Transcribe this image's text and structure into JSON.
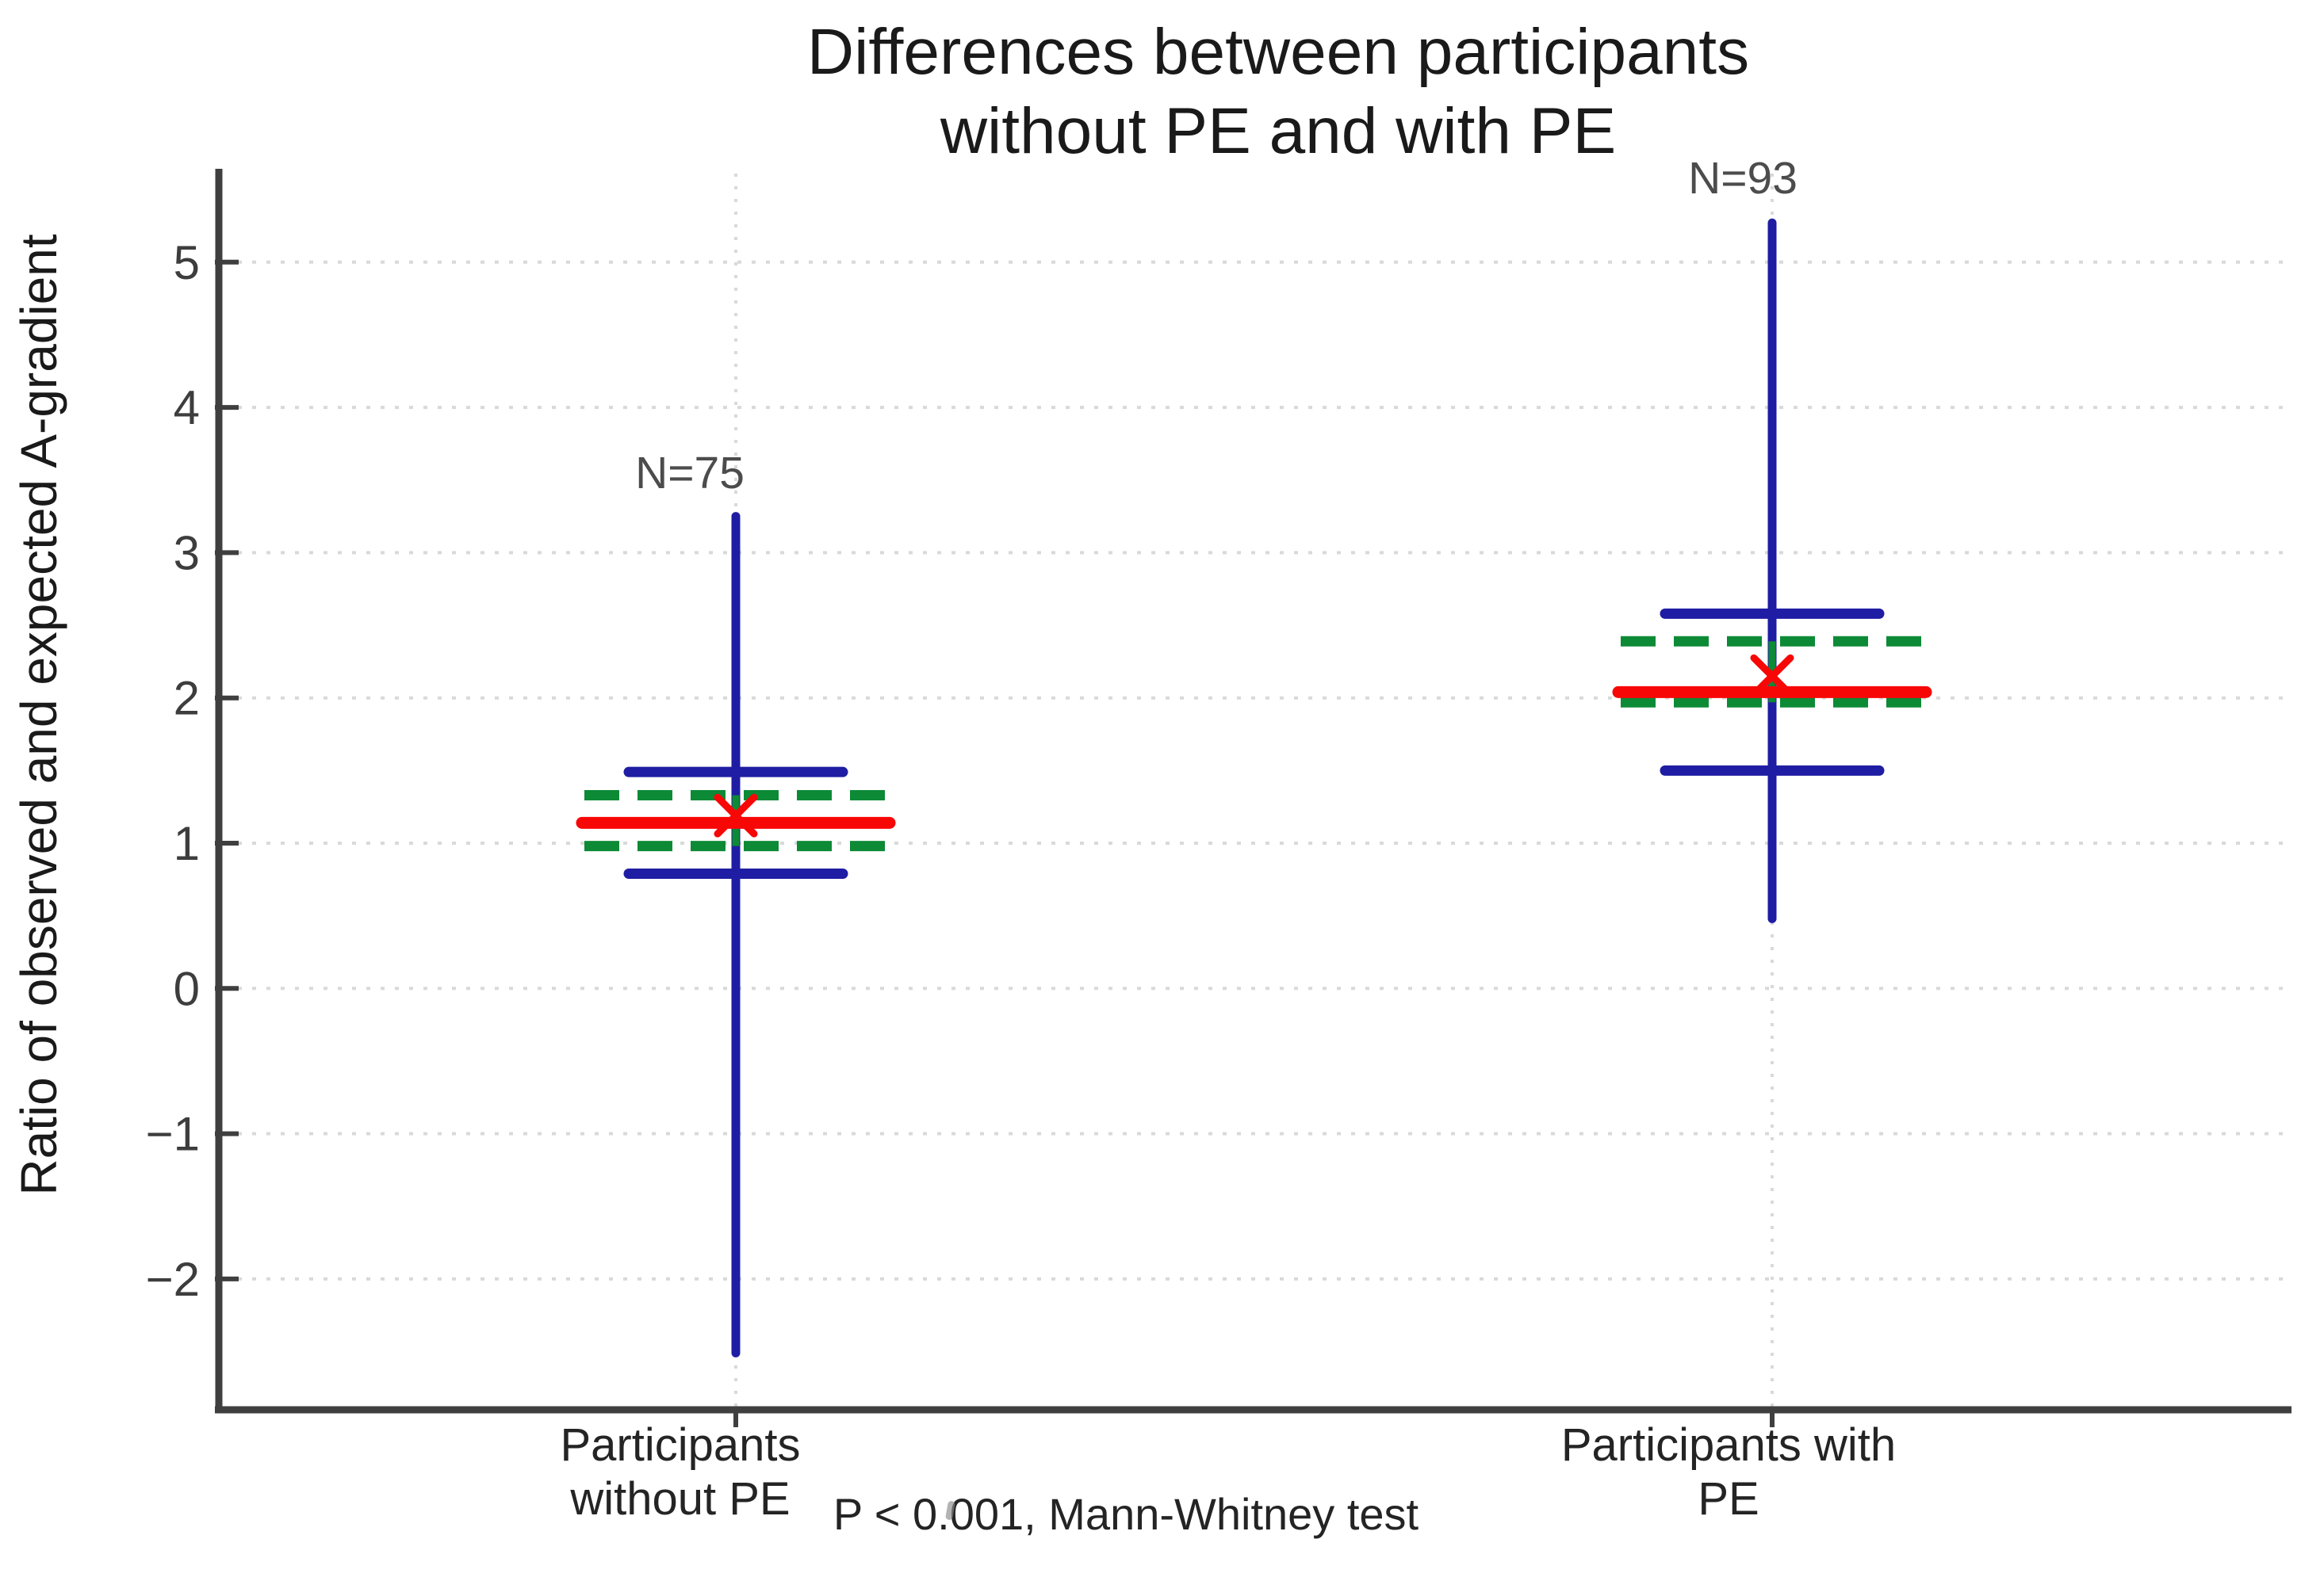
{
  "chart_data": {
    "type": "boxplot",
    "title_line1": "Differences between participants",
    "title_line2": "without PE and with PE",
    "ylabel": "Ratio of observed and expected A-gradient",
    "annotation": "P < 0.001, Mann-Whitney test",
    "y_tick_values": [
      5,
      4,
      3,
      2,
      1,
      0,
      -1,
      -2
    ],
    "y_tick_labels": [
      "5",
      "4",
      "3",
      "2",
      "1",
      "0",
      "−1",
      "−2"
    ],
    "ylim": [
      -2.9,
      5.65
    ],
    "grid": "dotted horizontal and vertical category gridlines",
    "legend": "none",
    "colors": {
      "whisker_blue": "#1f1da3",
      "mean_red": "#f80707",
      "ci_green": "#0d8a36",
      "gridline": "#d9d9d9",
      "axis": "#3f3f3f",
      "tick_text": "#3d3d3d"
    },
    "groups": [
      {
        "label_line1": "Participants",
        "label_line2": "without PE",
        "n_label": "N=75",
        "n": 75,
        "whisker_top": 3.25,
        "whisker_bottom": -2.51,
        "cap_upper": 1.49,
        "cap_lower": 0.79,
        "ci_upper": 1.33,
        "ci_lower": 0.98,
        "mean_line": 1.14,
        "mean_marker": 1.19
      },
      {
        "label_line1": "Participants with",
        "label_line2": "PE",
        "n_label": "N=93",
        "n": 93,
        "whisker_top": 5.27,
        "whisker_bottom": 0.48,
        "cap_upper": 2.58,
        "cap_lower": 1.5,
        "ci_upper": 2.39,
        "ci_lower": 1.97,
        "mean_line": 2.04,
        "mean_marker": 2.15
      }
    ]
  }
}
